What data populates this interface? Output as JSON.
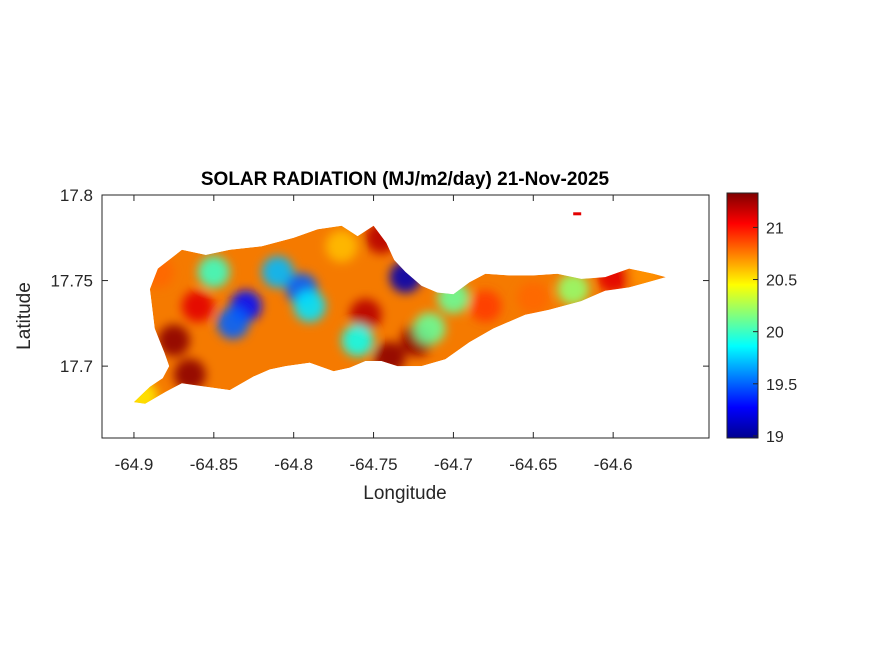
{
  "chart_data": {
    "type": "heatmap",
    "title": "SOLAR RADIATION (MJ/m2/day) 21-Nov-2025",
    "xlabel": "Longitude",
    "ylabel": "Latitude",
    "xlim": [
      -64.92,
      -64.54
    ],
    "ylim": [
      17.658,
      17.8
    ],
    "xticks": [
      -64.9,
      -64.85,
      -64.8,
      -64.75,
      -64.7,
      -64.65,
      -64.6
    ],
    "xtick_labels": [
      "-64.9",
      "-64.85",
      "-64.8",
      "-64.75",
      "-64.7",
      "-64.65",
      "-64.6"
    ],
    "yticks": [
      17.7,
      17.75,
      17.8
    ],
    "ytick_labels": [
      "17.7",
      "17.75",
      "17.8"
    ],
    "colorbar": {
      "colormap": "jet",
      "clim": [
        18.98,
        21.33
      ],
      "ticks": [
        19,
        19.5,
        20,
        20.5,
        21
      ],
      "tick_labels": [
        "19",
        "19.5",
        "20",
        "20.5",
        "21"
      ]
    },
    "grid": false,
    "region_outline": [
      [
        -64.9,
        17.679
      ],
      [
        -64.89,
        17.688
      ],
      [
        -64.882,
        17.693
      ],
      [
        -64.878,
        17.7
      ],
      [
        -64.881,
        17.708
      ],
      [
        -64.887,
        17.722
      ],
      [
        -64.89,
        17.745
      ],
      [
        -64.885,
        17.757
      ],
      [
        -64.87,
        17.768
      ],
      [
        -64.855,
        17.765
      ],
      [
        -64.84,
        17.768
      ],
      [
        -64.82,
        17.77
      ],
      [
        -64.8,
        17.775
      ],
      [
        -64.785,
        17.78
      ],
      [
        -64.77,
        17.782
      ],
      [
        -64.76,
        17.776
      ],
      [
        -64.75,
        17.782
      ],
      [
        -64.742,
        17.772
      ],
      [
        -64.737,
        17.762
      ],
      [
        -64.73,
        17.755
      ],
      [
        -64.72,
        17.747
      ],
      [
        -64.71,
        17.743
      ],
      [
        -64.7,
        17.742
      ],
      [
        -64.69,
        17.749
      ],
      [
        -64.68,
        17.754
      ],
      [
        -64.665,
        17.753
      ],
      [
        -64.65,
        17.753
      ],
      [
        -64.635,
        17.754
      ],
      [
        -64.62,
        17.751
      ],
      [
        -64.605,
        17.752
      ],
      [
        -64.59,
        17.757
      ],
      [
        -64.575,
        17.754
      ],
      [
        -64.567,
        17.752
      ],
      [
        -64.59,
        17.746
      ],
      [
        -64.605,
        17.744
      ],
      [
        -64.62,
        17.738
      ],
      [
        -64.64,
        17.733
      ],
      [
        -64.655,
        17.73
      ],
      [
        -64.675,
        17.722
      ],
      [
        -64.69,
        17.714
      ],
      [
        -64.705,
        17.704
      ],
      [
        -64.72,
        17.7
      ],
      [
        -64.735,
        17.7
      ],
      [
        -64.745,
        17.703
      ],
      [
        -64.755,
        17.703
      ],
      [
        -64.765,
        17.699
      ],
      [
        -64.775,
        17.697
      ],
      [
        -64.79,
        17.702
      ],
      [
        -64.805,
        17.7
      ],
      [
        -64.815,
        17.698
      ],
      [
        -64.825,
        17.694
      ],
      [
        -64.84,
        17.686
      ],
      [
        -64.855,
        17.688
      ],
      [
        -64.87,
        17.69
      ],
      [
        -64.88,
        17.685
      ],
      [
        -64.893,
        17.678
      ]
    ],
    "islet": [
      [
        -64.625,
        17.789
      ],
      [
        -64.62,
        17.789
      ]
    ],
    "hotspots": [
      {
        "lon": -64.875,
        "lat": 17.715,
        "value": 21.3
      },
      {
        "lon": -64.865,
        "lat": 17.695,
        "value": 21.3
      },
      {
        "lon": -64.86,
        "lat": 17.735,
        "value": 21.1
      },
      {
        "lon": -64.83,
        "lat": 17.735,
        "value": 19.3
      },
      {
        "lon": -64.838,
        "lat": 17.725,
        "value": 19.5
      },
      {
        "lon": -64.81,
        "lat": 17.755,
        "value": 19.7
      },
      {
        "lon": -64.795,
        "lat": 17.745,
        "value": 19.5
      },
      {
        "lon": -64.79,
        "lat": 17.735,
        "value": 19.8
      },
      {
        "lon": -64.85,
        "lat": 17.755,
        "value": 20.0
      },
      {
        "lon": -64.755,
        "lat": 17.73,
        "value": 21.2
      },
      {
        "lon": -64.74,
        "lat": 17.705,
        "value": 21.3
      },
      {
        "lon": -64.76,
        "lat": 17.715,
        "value": 19.9
      },
      {
        "lon": -64.73,
        "lat": 17.752,
        "value": 19.1
      },
      {
        "lon": -64.723,
        "lat": 17.715,
        "value": 21.3
      },
      {
        "lon": -64.7,
        "lat": 17.74,
        "value": 20.1
      },
      {
        "lon": -64.68,
        "lat": 17.735,
        "value": 20.9
      },
      {
        "lon": -64.65,
        "lat": 17.74,
        "value": 20.8
      },
      {
        "lon": -64.625,
        "lat": 17.745,
        "value": 20.2
      },
      {
        "lon": -64.6,
        "lat": 17.752,
        "value": 21.1
      },
      {
        "lon": -64.58,
        "lat": 17.754,
        "value": 20.7
      },
      {
        "lon": -64.885,
        "lat": 17.755,
        "value": 20.8
      },
      {
        "lon": -64.77,
        "lat": 17.77,
        "value": 20.6
      },
      {
        "lon": -64.745,
        "lat": 17.775,
        "value": 21.2
      },
      {
        "lon": -64.715,
        "lat": 17.722,
        "value": 20.1
      },
      {
        "lon": -64.895,
        "lat": 17.682,
        "value": 20.5
      }
    ]
  }
}
